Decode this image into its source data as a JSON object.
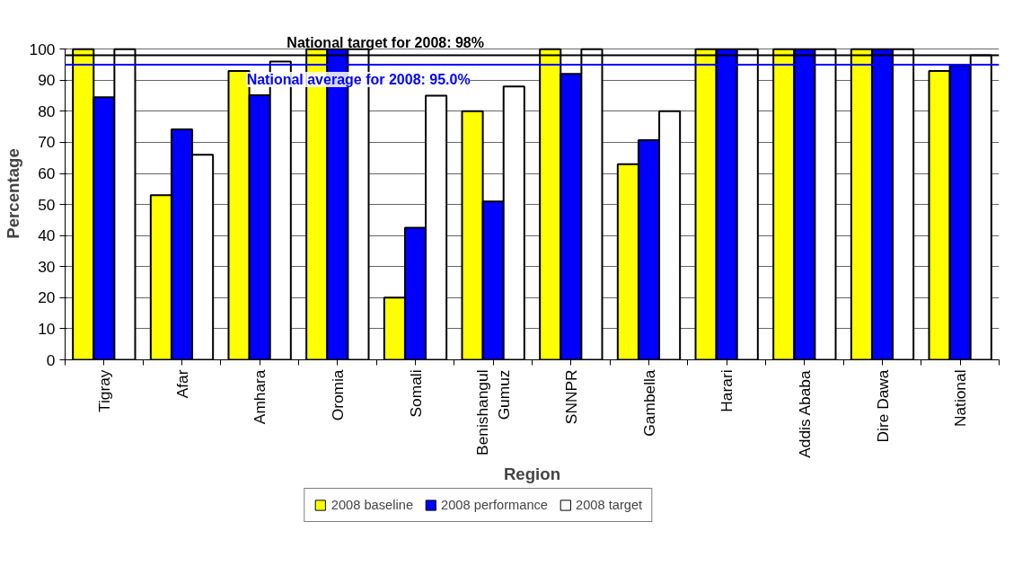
{
  "chart_data": {
    "type": "bar",
    "xlabel": "Region",
    "ylabel": "Percentage",
    "categories": [
      "Tigray",
      "Afar",
      "Amhara",
      "Oromia",
      "Somali",
      "Benishangul Gumuz",
      "SNNPR",
      "Gambella",
      "Harari",
      "Addis Ababa",
      "Dire Dawa",
      "National"
    ],
    "series": [
      {
        "name": "2008 baseline",
        "color": "#ffff00",
        "values": [
          100,
          53,
          93,
          100,
          20,
          80,
          100,
          63,
          100,
          100,
          100,
          93
        ]
      },
      {
        "name": "2008 performance",
        "color": "#0000ff",
        "values": [
          84.5,
          74.2,
          85.2,
          100,
          42.5,
          51,
          92,
          70.7,
          100,
          100,
          100,
          94.8
        ]
      },
      {
        "name": "2008 target",
        "color": "#ffffff",
        "values": [
          100,
          66,
          96,
          100,
          85,
          88,
          100,
          80,
          100,
          100,
          100,
          98
        ]
      }
    ],
    "ylim": [
      0,
      100
    ],
    "yticks": [
      0,
      10,
      20,
      30,
      40,
      50,
      60,
      70,
      80,
      90,
      100
    ],
    "grid": "y",
    "legend": "bottom",
    "ref_lines": [
      {
        "axis": "y",
        "value": 98,
        "label": "National target for 2008: 98%",
        "color": "#000000"
      },
      {
        "axis": "y",
        "value": 95,
        "label": "National average for 2008: 95.0%",
        "color": "#0000ff"
      }
    ]
  }
}
